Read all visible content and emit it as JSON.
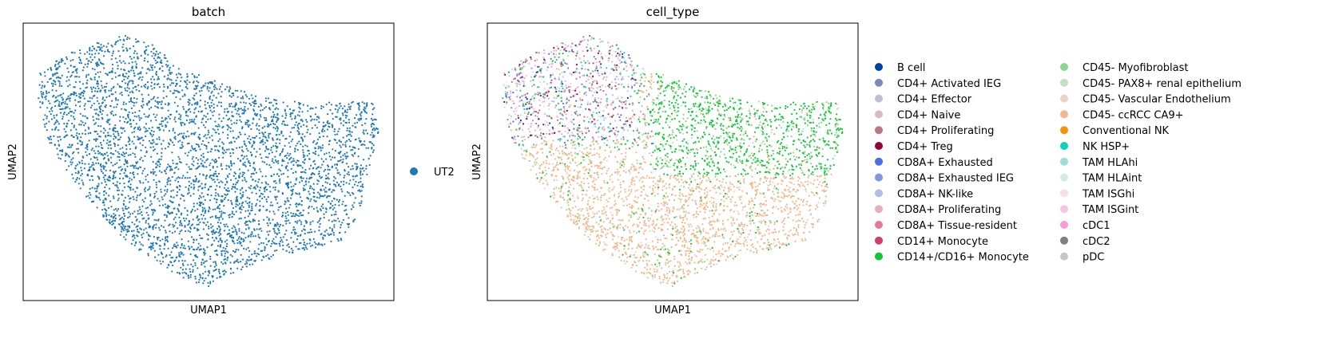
{
  "chart_data": [
    {
      "type": "scatter",
      "title": "batch",
      "xlabel": "UMAP1",
      "ylabel": "UMAP2",
      "xticks": [],
      "yticks": [],
      "grid": false,
      "legend_position": "right",
      "legend": [
        {
          "label": "UT2",
          "color": "#1f77b4"
        }
      ],
      "n_points_approx": 4500,
      "color_by": "batch",
      "distribution": "single batch UT2 covers the whole embedding"
    },
    {
      "type": "scatter",
      "title": "cell_type",
      "xlabel": "UMAP1",
      "ylabel": "UMAP2",
      "xticks": [],
      "yticks": [],
      "grid": false,
      "legend_position": "right",
      "legend_columns": 2,
      "n_points_approx": 4500,
      "color_by": "cell_type",
      "legend": [
        {
          "label": "B cell",
          "color": "#023fa5"
        },
        {
          "label": "CD4+ Activated IEG",
          "color": "#7d87b9"
        },
        {
          "label": "CD4+ Effector",
          "color": "#bec1d4"
        },
        {
          "label": "CD4+ Naive",
          "color": "#d6bcc0"
        },
        {
          "label": "CD4+ Proliferating",
          "color": "#bb7784"
        },
        {
          "label": "CD4+ Treg",
          "color": "#8e063b"
        },
        {
          "label": "CD8A+ Exhausted",
          "color": "#4a6fe3"
        },
        {
          "label": "CD8A+ Exhausted IEG",
          "color": "#8595e1"
        },
        {
          "label": "CD8A+ NK-like",
          "color": "#b5bbe3"
        },
        {
          "label": "CD8A+ Proliferating",
          "color": "#e6afb9"
        },
        {
          "label": "CD8A+ Tissue-resident",
          "color": "#e07b91"
        },
        {
          "label": "CD14+ Monocyte",
          "color": "#d33f6a"
        },
        {
          "label": "CD14+/CD16+ Monocyte",
          "color": "#11c638"
        },
        {
          "label": "CD45- Myofibroblast",
          "color": "#8dd593"
        },
        {
          "label": "CD45- PAX8+ renal epithelium",
          "color": "#c6dec7"
        },
        {
          "label": "CD45- Vascular Endothelium",
          "color": "#ead3c6"
        },
        {
          "label": "CD45- ccRCC CA9+",
          "color": "#f0b98d"
        },
        {
          "label": "Conventional NK",
          "color": "#ef9708"
        },
        {
          "label": "NK HSP+",
          "color": "#0fcfc0"
        },
        {
          "label": "TAM HLAhi",
          "color": "#9cded6"
        },
        {
          "label": "TAM HLAint",
          "color": "#d5eae7"
        },
        {
          "label": "TAM ISGhi",
          "color": "#f3e1eb"
        },
        {
          "label": "TAM ISGint",
          "color": "#f6c4e1"
        },
        {
          "label": "cDC1",
          "color": "#f79cd4"
        },
        {
          "label": "cDC2",
          "color": "#7f7f7f"
        },
        {
          "label": "pDC",
          "color": "#c7c7c7"
        }
      ],
      "distribution": "top-left region mixed T/NK/myeloid types; right region green CD14+/CD16+ Monocyte; lower region dominated by CD45- ccRCC CA9+ (peach)"
    }
  ]
}
